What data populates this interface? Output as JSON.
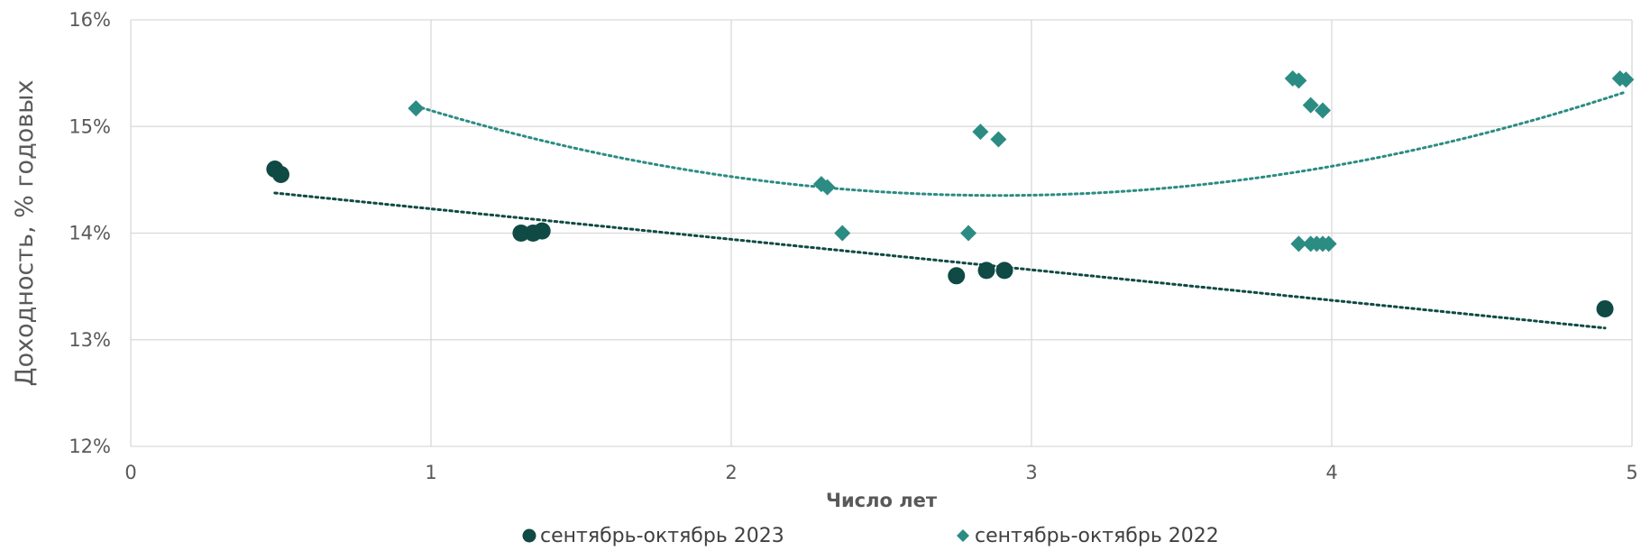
{
  "chart_data": {
    "type": "scatter",
    "title": "",
    "xlabel": "Число лет",
    "ylabel": "Доходность, % годовых",
    "xlim": [
      0,
      5
    ],
    "ylim": [
      12,
      16
    ],
    "x_ticks": [
      0,
      1,
      2,
      3,
      4,
      5
    ],
    "x_tick_labels": [
      "0",
      "1",
      "2",
      "3",
      "4",
      "5"
    ],
    "y_ticks": [
      12,
      13,
      14,
      15,
      16
    ],
    "y_tick_labels": [
      "12%",
      "13%",
      "14%",
      "15%",
      "16%"
    ],
    "grid": true,
    "legend_position": "bottom",
    "series": [
      {
        "name": "сентябрь-октябрь 2023",
        "marker": "circle",
        "color": "#0f4a44",
        "trendline": "linear",
        "points": [
          {
            "x": 0.48,
            "y": 14.6
          },
          {
            "x": 0.5,
            "y": 14.55
          },
          {
            "x": 1.3,
            "y": 14.0
          },
          {
            "x": 1.34,
            "y": 14.0
          },
          {
            "x": 1.37,
            "y": 14.02
          },
          {
            "x": 2.75,
            "y": 13.6
          },
          {
            "x": 2.85,
            "y": 13.65
          },
          {
            "x": 2.91,
            "y": 13.65
          },
          {
            "x": 4.91,
            "y": 13.29
          }
        ]
      },
      {
        "name": "сентябрь-октябрь 2022",
        "marker": "diamond",
        "color": "#2b8c83",
        "trendline": "polynomial",
        "points": [
          {
            "x": 0.95,
            "y": 15.17
          },
          {
            "x": 2.3,
            "y": 14.46
          },
          {
            "x": 2.32,
            "y": 14.43
          },
          {
            "x": 2.37,
            "y": 14.0
          },
          {
            "x": 2.79,
            "y": 14.0
          },
          {
            "x": 2.83,
            "y": 14.95
          },
          {
            "x": 2.89,
            "y": 14.88
          },
          {
            "x": 3.87,
            "y": 15.45
          },
          {
            "x": 3.89,
            "y": 15.43
          },
          {
            "x": 3.93,
            "y": 15.2
          },
          {
            "x": 3.97,
            "y": 15.15
          },
          {
            "x": 3.89,
            "y": 13.9
          },
          {
            "x": 3.93,
            "y": 13.9
          },
          {
            "x": 3.95,
            "y": 13.9
          },
          {
            "x": 3.97,
            "y": 13.9
          },
          {
            "x": 3.99,
            "y": 13.9
          },
          {
            "x": 4.96,
            "y": 15.45
          },
          {
            "x": 4.98,
            "y": 15.44
          }
        ]
      }
    ]
  }
}
